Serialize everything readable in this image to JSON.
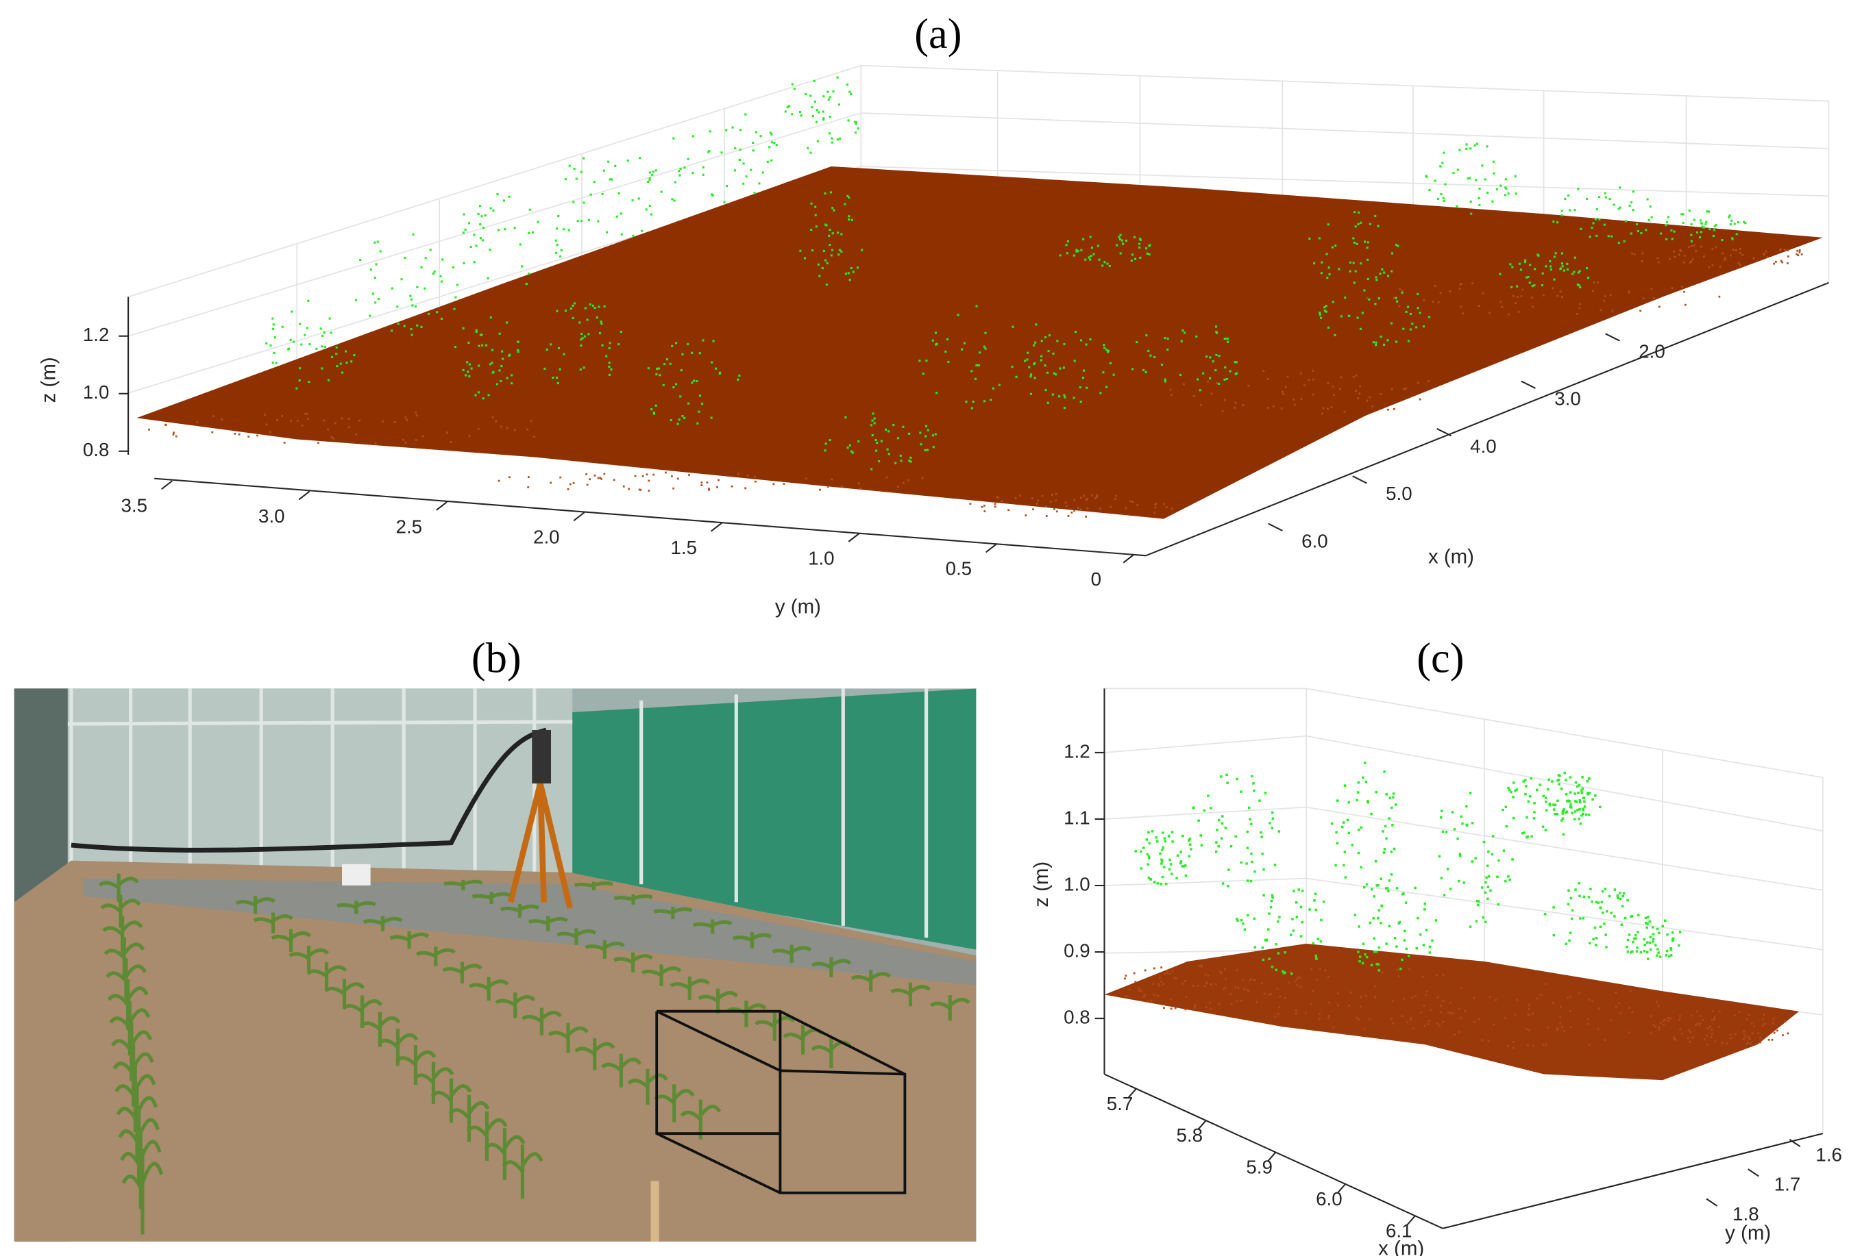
{
  "figure": {
    "panels": [
      {
        "label": "(a)",
        "axes": {
          "x": {
            "label": "x (m)",
            "ticks": [
              {
                "value": 6,
                "label": "6.0"
              },
              {
                "value": 5,
                "label": "5.0"
              },
              {
                "value": 4,
                "label": "4.0"
              },
              {
                "value": 3,
                "label": "3.0"
              },
              {
                "value": 2,
                "label": "2.0"
              }
            ]
          },
          "y": {
            "label": "y (m)",
            "ticks": [
              3.5,
              {
                "value": 3,
                "label": "3.0"
              },
              2.5,
              {
                "value": 2,
                "label": "2.0"
              },
              1.5,
              {
                "value": 1,
                "label": "1.0"
              },
              0.5,
              0
            ]
          },
          "z": {
            "label": "z (m)",
            "ticks": [
              0.8,
              {
                "value": 1,
                "label": "1.0"
              },
              1.2
            ]
          }
        }
      },
      {
        "label": "(b)"
      },
      {
        "label": "(c)",
        "axes": {
          "x": {
            "label": "x (m)",
            "ticks": [
              5.7,
              5.8,
              5.9,
              {
                "value": 6,
                "label": "6.0"
              },
              6.1
            ]
          },
          "y": {
            "label": "y (m)",
            "ticks": [
              1.8,
              1.7,
              1.6
            ]
          },
          "z": {
            "label": "z (m)",
            "ticks": [
              0.8,
              0.9,
              {
                "value": 1,
                "label": "1.0"
              },
              1.1,
              1.2
            ]
          }
        }
      }
    ]
  }
}
